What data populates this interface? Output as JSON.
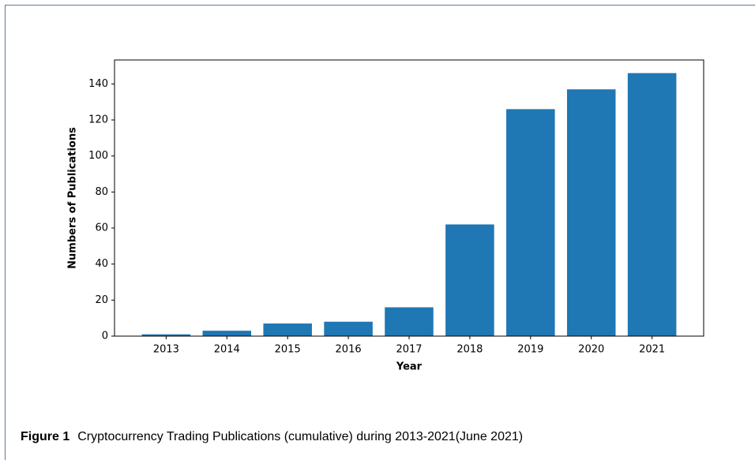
{
  "chart_data": {
    "type": "bar",
    "x_label": "Year",
    "y_label": "Numbers of Publications",
    "categories": [
      "2013",
      "2014",
      "2015",
      "2016",
      "2017",
      "2018",
      "2019",
      "2020",
      "2021"
    ],
    "values": [
      1,
      3,
      7,
      8,
      16,
      62,
      126,
      137,
      146
    ],
    "color": "#1f77b4",
    "ylim": [
      0,
      153.3
    ],
    "yticks": [
      0,
      20,
      40,
      60,
      80,
      100,
      120,
      140
    ],
    "grid": false
  },
  "caption": {
    "label": "Figure 1",
    "text": "Cryptocurrency Trading Publications (cumulative) during 2013-2021(June 2021)"
  }
}
